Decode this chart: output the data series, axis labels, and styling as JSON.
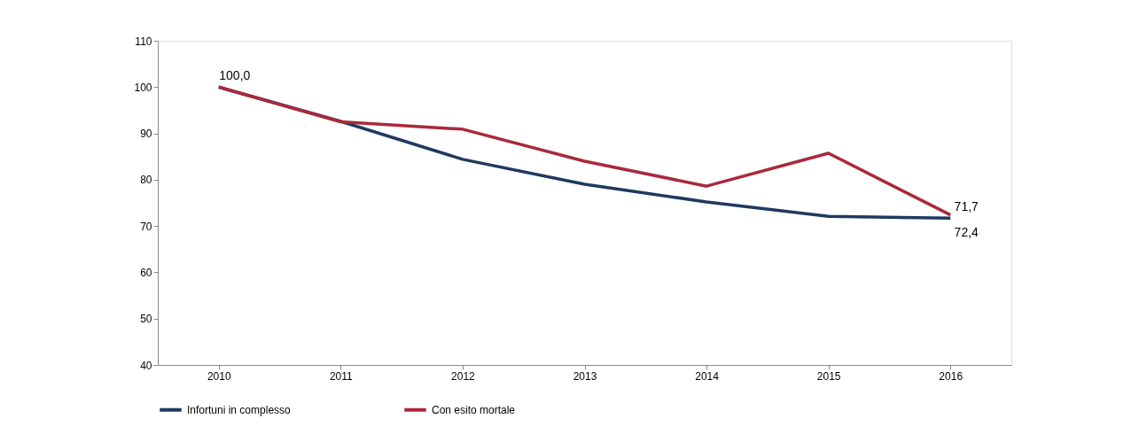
{
  "chart_data": {
    "type": "line",
    "categories": [
      "2010",
      "2011",
      "2012",
      "2013",
      "2014",
      "2015",
      "2016"
    ],
    "series": [
      {
        "name": "Infortuni in complesso",
        "color": "#1f3a60",
        "values": [
          100.0,
          92.6,
          84.4,
          79.0,
          75.2,
          72.1,
          71.7
        ],
        "value_labels": [
          "100,0",
          null,
          null,
          null,
          null,
          null,
          "71,7"
        ]
      },
      {
        "name": "Con esito mortale",
        "color": "#a82a3c",
        "values": [
          100.0,
          92.5,
          90.9,
          84.0,
          78.6,
          85.7,
          72.4
        ],
        "value_labels": [
          null,
          null,
          null,
          null,
          null,
          null,
          "72,4"
        ]
      }
    ],
    "ylim": [
      40,
      110
    ],
    "yticks": [
      40,
      50,
      60,
      70,
      80,
      90,
      100,
      110
    ],
    "grid": false,
    "legend": "bottom",
    "marker": "none",
    "line_style": "solid"
  }
}
